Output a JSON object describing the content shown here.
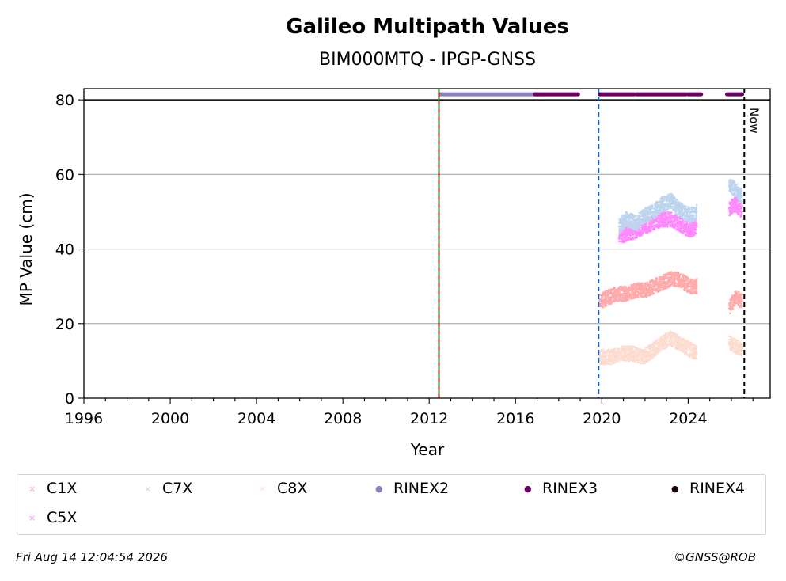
{
  "chart_data": {
    "type": "scatter",
    "title": "Galileo Multipath Values",
    "subtitle": "BIM000MTQ - IPGP-GNSS",
    "xlabel": "Year",
    "ylabel": "MP Value (cm)",
    "xlim": [
      1996,
      2027.8
    ],
    "ylim": [
      0,
      83
    ],
    "x_ticks": [
      1996,
      2000,
      2004,
      2008,
      2012,
      2016,
      2020,
      2024
    ],
    "x_tick_labels": [
      "1996",
      "2000",
      "2004",
      "2008",
      "2012",
      "2016",
      "2020",
      "2024"
    ],
    "y_ticks": [
      0,
      20,
      40,
      60,
      80
    ],
    "y_tick_labels": [
      "0",
      "20",
      "40",
      "60",
      "80"
    ],
    "grid": "horizontal",
    "legend_placement": "below",
    "series": [
      {
        "name": "C1X",
        "color": "#ffaaaa",
        "marker": "x",
        "x": [
          2019.9,
          2020.3,
          2020.7,
          2021.1,
          2021.6,
          2022.0,
          2022.4,
          2022.8,
          2023.2,
          2023.5,
          2024.1,
          2024.4,
          2025.9,
          2026.2,
          2026.5
        ],
        "y": [
          26,
          27,
          28,
          28,
          29,
          29,
          30,
          31,
          32,
          32,
          30,
          30,
          24,
          27,
          26
        ]
      },
      {
        "name": "C5X",
        "color": "#ff88ff",
        "marker": "x",
        "x": [
          2020.8,
          2021.1,
          2021.6,
          2022.0,
          2022.4,
          2022.8,
          2023.2,
          2023.5,
          2024.1,
          2024.4,
          2025.9,
          2026.2,
          2026.5
        ],
        "y": [
          43,
          44,
          45,
          46,
          47,
          48,
          48,
          47,
          45,
          46,
          51,
          52,
          50
        ]
      },
      {
        "name": "C7X",
        "color": "#bdd4ee",
        "marker": "x",
        "x": [
          2020.8,
          2021.1,
          2021.6,
          2022.0,
          2022.4,
          2022.8,
          2023.2,
          2023.5,
          2024.1,
          2024.4,
          2025.9,
          2026.2,
          2026.5
        ],
        "y": [
          46,
          48,
          47,
          49,
          50,
          52,
          53,
          51,
          49,
          50,
          57,
          56,
          54
        ]
      },
      {
        "name": "C8X",
        "color": "#fddcd0",
        "marker": "x",
        "x": [
          2019.9,
          2020.4,
          2020.9,
          2021.4,
          2021.9,
          2022.4,
          2022.8,
          2023.2,
          2023.5,
          2024.1,
          2024.4,
          2025.9,
          2026.2,
          2026.5
        ],
        "y": [
          11,
          11,
          12,
          12,
          11,
          13,
          15,
          16,
          15,
          13,
          12,
          15,
          14,
          13
        ]
      },
      {
        "name": "RINEX2",
        "color": "#8a80c4",
        "marker": "o",
        "y_level": 81.5,
        "segments": [
          [
            2012.5,
            2017.1
          ]
        ]
      },
      {
        "name": "RINEX3",
        "color": "#6a0060",
        "marker": "o",
        "y_level": 81.5,
        "segments": [
          [
            2016.9,
            2018.9
          ],
          [
            2019.9,
            2021.5
          ],
          [
            2021.6,
            2023.9
          ],
          [
            2024.0,
            2024.6
          ],
          [
            2025.8,
            2026.5
          ]
        ]
      },
      {
        "name": "RINEX4",
        "color": "#1a0010",
        "marker": "o",
        "y_level": 81.5,
        "segments": []
      }
    ],
    "vlines": [
      {
        "x": 2012.45,
        "color": "#d00000",
        "style": "solid"
      },
      {
        "x": 2012.45,
        "color": "#208020",
        "style": "dashed"
      },
      {
        "x": 2019.85,
        "color": "#1060c0",
        "style": "dashed"
      },
      {
        "x": 2026.6,
        "color": "#000000",
        "style": "dashed",
        "label": "Now"
      }
    ],
    "hline": {
      "y": 80,
      "color": "#000000"
    }
  },
  "legend": {
    "items": [
      {
        "label": "C1X",
        "color": "#ffaaaa",
        "marker": "×"
      },
      {
        "label": "C7X",
        "color": "#bdd4ee",
        "marker": "×"
      },
      {
        "label": "C8X",
        "color": "#fddcd0",
        "marker": "×"
      },
      {
        "label": "RINEX2",
        "color": "#8a80c4",
        "marker": "●"
      },
      {
        "label": "RINEX3",
        "color": "#6a0060",
        "marker": "●"
      },
      {
        "label": "RINEX4",
        "color": "#1a0010",
        "marker": "●"
      },
      {
        "label": "C5X",
        "color": "#ff88ff",
        "marker": "×"
      }
    ]
  },
  "footer": {
    "timestamp": "Fri Aug 14 12:04:54 2026",
    "credit": "©GNSS@ROB"
  }
}
